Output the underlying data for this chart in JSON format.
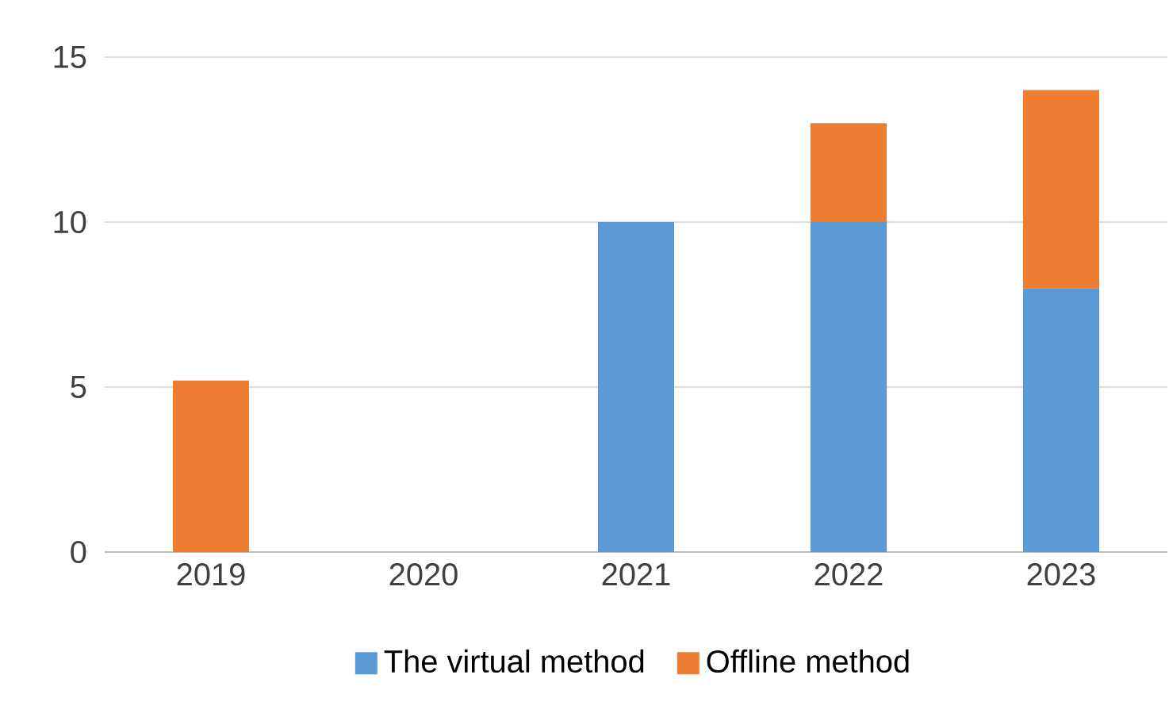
{
  "chart_data": {
    "type": "bar",
    "stacked": true,
    "categories": [
      "2019",
      "2020",
      "2021",
      "2022",
      "2023"
    ],
    "series": [
      {
        "name": "The virtual method",
        "color": "#5b9bd5",
        "values": [
          0,
          0,
          10,
          10,
          8
        ]
      },
      {
        "name": "Offline method",
        "color": "#ed7d31",
        "values": [
          5.2,
          0,
          0,
          3,
          6
        ]
      }
    ],
    "ylim": [
      0,
      15
    ],
    "yticks": [
      0,
      5,
      10,
      15
    ],
    "grid": "y",
    "legend": "bottom"
  }
}
